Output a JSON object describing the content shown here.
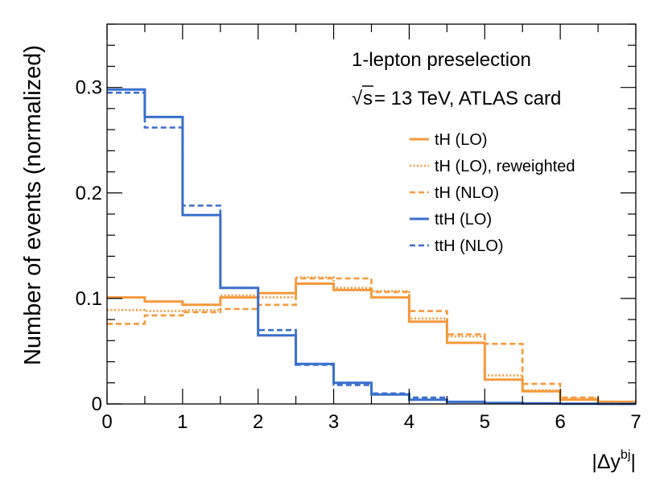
{
  "chart_data": {
    "type": "step",
    "xlabel_prefix": "|Δy",
    "xlabel_sup": "bj",
    "xlabel_suffix": "|",
    "ylabel": "Number of events (normalized)",
    "xlim": [
      0,
      7
    ],
    "ylim": [
      0,
      0.36
    ],
    "xticks": [
      0,
      1,
      2,
      3,
      4,
      5,
      6,
      7
    ],
    "xtick_labels": [
      "0",
      "1",
      "2",
      "3",
      "4",
      "5",
      "6",
      "7"
    ],
    "yticks": [
      0,
      0.1,
      0.2,
      0.3
    ],
    "ytick_labels": [
      "0",
      "0.1",
      "0.2",
      "0.3"
    ],
    "bin_edges": [
      0,
      0.5,
      1,
      1.5,
      2,
      2.5,
      3,
      3.5,
      4,
      4.5,
      5,
      5.5,
      6,
      6.5,
      7
    ],
    "annotations": {
      "line1": "1-lepton preselection",
      "sqrt": "√",
      "s": "s",
      "line2_rest": " = 13 TeV, ATLAS card"
    },
    "legend_position": "top-right",
    "series": [
      {
        "name": "tH (LO)",
        "color": "#f5993c",
        "style": "solid",
        "values": [
          0.101,
          0.097,
          0.094,
          0.101,
          0.105,
          0.114,
          0.108,
          0.101,
          0.078,
          0.058,
          0.023,
          0.012,
          0.004,
          0.002
        ]
      },
      {
        "name": "tH (LO), reweighted",
        "color": "#f5993c",
        "style": "dotted",
        "values": [
          0.089,
          0.088,
          0.089,
          0.103,
          0.101,
          0.12,
          0.11,
          0.107,
          0.081,
          0.064,
          0.027,
          0.013,
          0.005,
          0.002
        ]
      },
      {
        "name": "tH (NLO)",
        "color": "#f5993c",
        "style": "dashed",
        "values": [
          0.076,
          0.084,
          0.087,
          0.09,
          0.094,
          0.119,
          0.119,
          0.106,
          0.088,
          0.066,
          0.057,
          0.019,
          0.006,
          0.002
        ]
      },
      {
        "name": "ttH (LO)",
        "color": "#3a6fcc",
        "style": "solid",
        "values": [
          0.298,
          0.272,
          0.179,
          0.11,
          0.065,
          0.038,
          0.02,
          0.009,
          0.004,
          0.002,
          0.001,
          0.0005,
          0.0002,
          0.0001
        ]
      },
      {
        "name": "ttH (NLO)",
        "color": "#3a6fcc",
        "style": "dashed",
        "values": [
          0.295,
          0.262,
          0.188,
          0.11,
          0.07,
          0.037,
          0.018,
          0.01,
          0.006,
          0.002,
          0.001,
          0.0005,
          0.0002,
          0.0001
        ]
      }
    ]
  }
}
